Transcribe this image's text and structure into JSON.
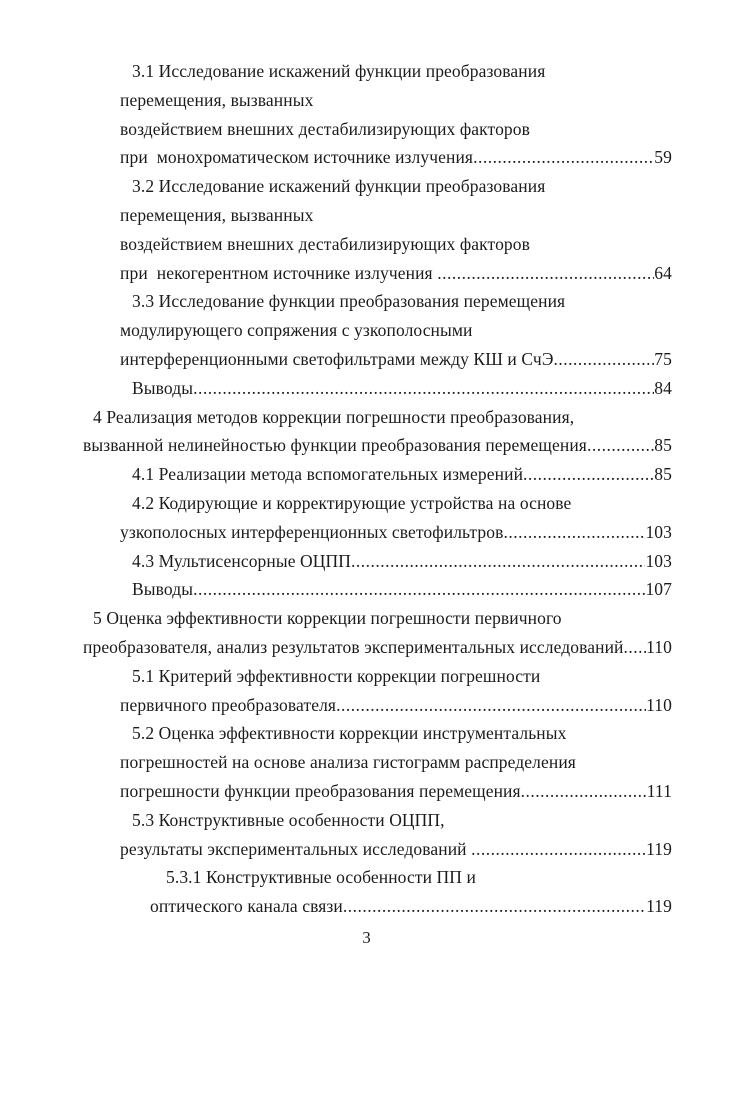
{
  "page": {
    "number": "3"
  },
  "toc": {
    "entries": [
      {
        "level": 1,
        "lines": [
          "3.1 Исследование искажений функции преобразования",
          "перемещения, вызванных",
          "воздействием внешних дестабилизирующих факторов",
          "при  монохроматическом источнике излучения"
        ],
        "page": "59"
      },
      {
        "level": 1,
        "lines": [
          "3.2 Исследование искажений функции преобразования",
          "перемещения, вызванных",
          "воздействием внешних дестабилизирующих факторов",
          "при  некогерентном источнике излучения "
        ],
        "page": "64"
      },
      {
        "level": 1,
        "lines": [
          "3.3 Исследование функции преобразования перемещения",
          "модулирующего сопряжения с узкополосными",
          "интерференционными светофильтрами между КШ и СчЭ"
        ],
        "page": "75"
      },
      {
        "level": 1,
        "lines": [
          "Выводы"
        ],
        "page": "84"
      },
      {
        "level": 0,
        "lines": [
          "4 Реализация методов коррекции погрешности преобразования,",
          "вызванной нелинейностью функции преобразования перемещения"
        ],
        "page": "85"
      },
      {
        "level": 1,
        "lines": [
          "4.1 Реализации метода вспомогательных измерений"
        ],
        "page": "85"
      },
      {
        "level": 1,
        "lines": [
          "4.2 Кодирующие и корректирующие устройства на основе",
          "узкополосных интерференционных светофильтров"
        ],
        "page": "103"
      },
      {
        "level": 1,
        "lines": [
          "4.3 Мультисенсорные ОЦПП"
        ],
        "page": "103"
      },
      {
        "level": 1,
        "lines": [
          "Выводы"
        ],
        "page": "107"
      },
      {
        "level": 0,
        "lines": [
          "5 Оценка эффективности коррекции погрешности первичного",
          "преобразователя, анализ результатов экспериментальных исследований"
        ],
        "page": "110"
      },
      {
        "level": 1,
        "lines": [
          "5.1 Критерий эффективности коррекции погрешности",
          "первичного преобразователя"
        ],
        "page": "110"
      },
      {
        "level": 1,
        "lines": [
          "5.2 Оценка эффективности коррекции инструментальных",
          "погрешностей на основе анализа гистограмм распределения",
          "погрешности функции преобразования перемещения"
        ],
        "page": "111"
      },
      {
        "level": 1,
        "lines": [
          "5.3 Конструктивные особенности ОЦПП,",
          "результаты экспериментальных исследований "
        ],
        "page": "119"
      },
      {
        "level": 2,
        "lines": [
          "5.3.1 Конструктивные особенности ПП и",
          "оптического канала связи"
        ],
        "page": "119"
      }
    ]
  }
}
